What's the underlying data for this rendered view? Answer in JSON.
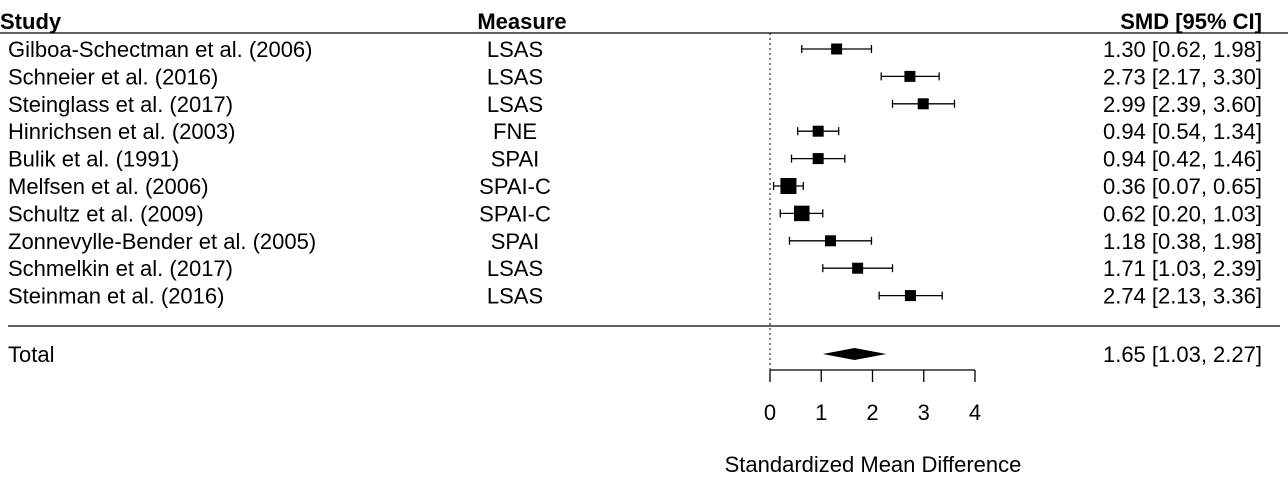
{
  "chart_data": {
    "type": "forest",
    "headers": {
      "study": "Study",
      "measure": "Measure",
      "effect": "SMD [95% CI]"
    },
    "studies": [
      {
        "label": "Gilboa-Schectman et al. (2006)",
        "measure": "LSAS",
        "est": 1.3,
        "lo": 0.62,
        "hi": 1.98,
        "text": "1.30 [0.62, 1.98]",
        "box": 0.5
      },
      {
        "label": "Schneier et al. (2016)",
        "measure": "LSAS",
        "est": 2.73,
        "lo": 2.17,
        "hi": 3.3,
        "text": "2.73 [2.17, 3.30]",
        "box": 0.5
      },
      {
        "label": "Steinglass et al. (2017)",
        "measure": "LSAS",
        "est": 2.99,
        "lo": 2.39,
        "hi": 3.6,
        "text": "2.99 [2.39, 3.60]",
        "box": 0.5
      },
      {
        "label": "Hinrichsen et al. (2003)",
        "measure": "FNE",
        "est": 0.94,
        "lo": 0.54,
        "hi": 1.34,
        "text": "0.94 [0.54, 1.34]",
        "box": 0.5
      },
      {
        "label": "Bulik et al. (1991)",
        "measure": "SPAI",
        "est": 0.94,
        "lo": 0.42,
        "hi": 1.46,
        "text": "0.94 [0.42, 1.46]",
        "box": 0.5
      },
      {
        "label": "Melfsen et al. (2006)",
        "measure": "SPAI-C",
        "est": 0.36,
        "lo": 0.07,
        "hi": 0.65,
        "text": "0.36 [0.07, 0.65]",
        "box": 1.0
      },
      {
        "label": "Schultz et al. (2009)",
        "measure": "SPAI-C",
        "est": 0.62,
        "lo": 0.2,
        "hi": 1.03,
        "text": "0.62 [0.20, 1.03]",
        "box": 0.95
      },
      {
        "label": "Zonnevylle-Bender et al. (2005)",
        "measure": "SPAI",
        "est": 1.18,
        "lo": 0.38,
        "hi": 1.98,
        "text": "1.18 [0.38, 1.98]",
        "box": 0.5
      },
      {
        "label": "Schmelkin et al. (2017)",
        "measure": "LSAS",
        "est": 1.71,
        "lo": 1.03,
        "hi": 2.39,
        "text": "1.71 [1.03, 2.39]",
        "box": 0.5
      },
      {
        "label": "Steinman et al. (2016)",
        "measure": "LSAS",
        "est": 2.74,
        "lo": 2.13,
        "hi": 3.36,
        "text": "2.74 [2.13, 3.36]",
        "box": 0.5
      }
    ],
    "total": {
      "label": "Total",
      "est": 1.65,
      "lo": 1.03,
      "hi": 2.27,
      "pi_lo": 1.03,
      "pi_hi": 2.27,
      "text": "1.65 [1.03, 2.27]"
    },
    "x_ticks": [
      "0",
      "1",
      "2",
      "3",
      "4"
    ],
    "xlim": [
      0,
      4
    ],
    "xlabel": "Standardized Mean Difference",
    "reference_line": 0,
    "colors": {
      "ink": "#000000",
      "background": "#ffffff"
    }
  }
}
